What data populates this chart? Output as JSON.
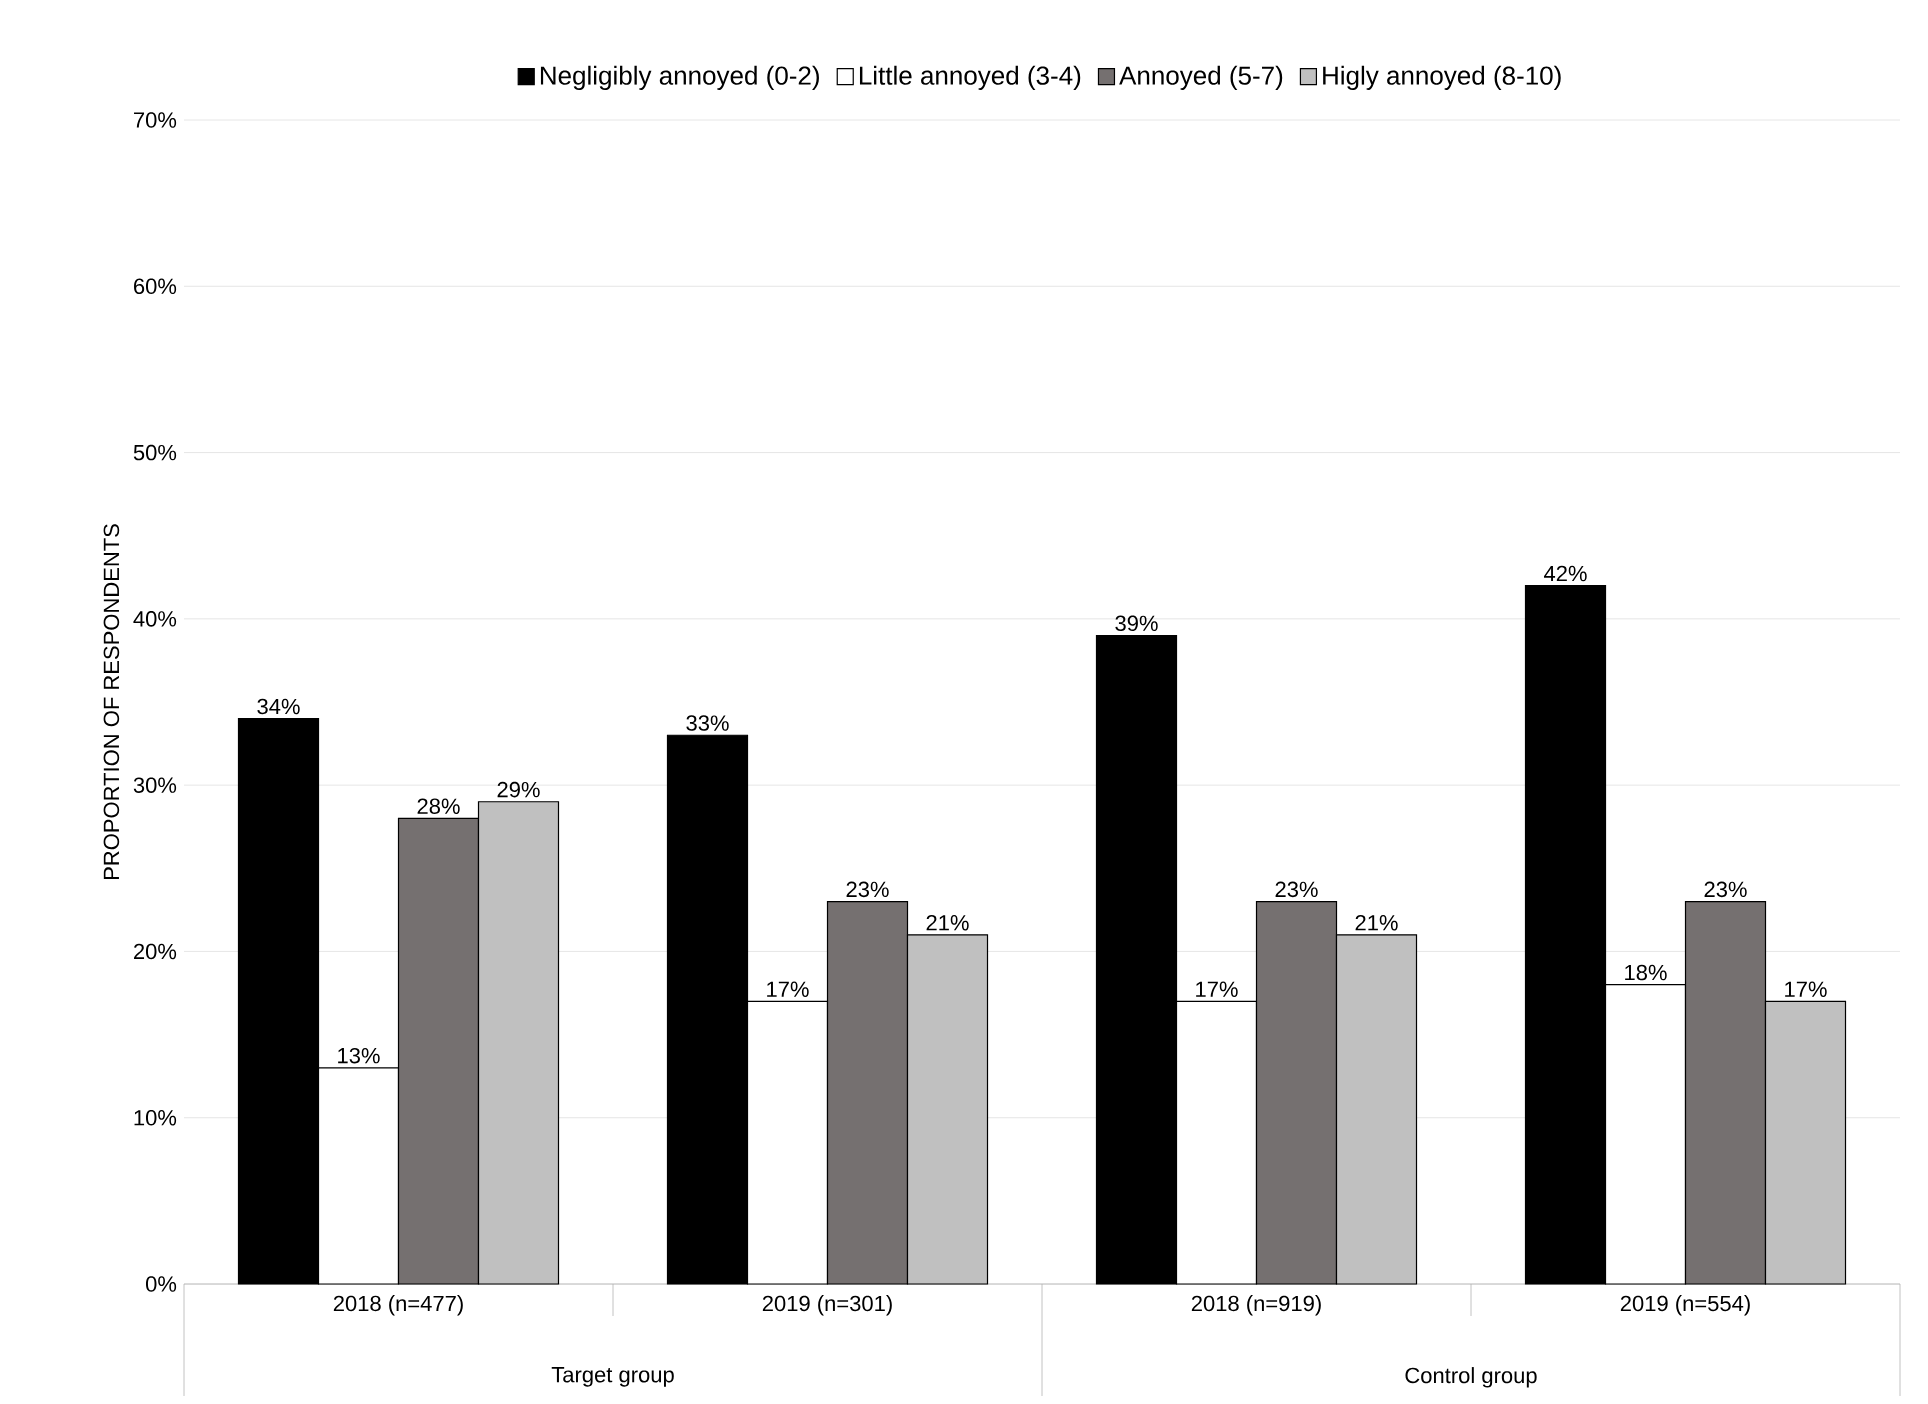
{
  "chart_data": {
    "type": "bar",
    "ylabel": "PROPORTION OF RESPONDENTS",
    "categories": [
      "2018 (n=477)",
      "2019 (n=301)",
      "2018 (n=919)",
      "2019 (n=554)"
    ],
    "series": [
      {
        "name": "Negligibly annoyed (0-2)",
        "color": "#000000",
        "values": [
          34,
          33,
          39,
          42
        ],
        "value_labels": [
          "34%",
          "33%",
          "39%",
          "42%"
        ]
      },
      {
        "name": "Little annoyed (3-4)",
        "color": "#ffffff",
        "values": [
          13,
          17,
          17,
          18
        ],
        "value_labels": [
          "13%",
          "17%",
          "17%",
          "18%"
        ]
      },
      {
        "name": "Annoyed (5-7)",
        "color": "#757070",
        "values": [
          28,
          23,
          23,
          23
        ],
        "value_labels": [
          "28%",
          "23%",
          "23%",
          "23%"
        ]
      },
      {
        "name": "Higly annoyed (8-10)",
        "color": "#c0c0c0",
        "values": [
          29,
          21,
          21,
          17
        ],
        "value_labels": [
          "29%",
          "21%",
          "21%",
          "17%"
        ]
      }
    ],
    "ylim": [
      0,
      70
    ],
    "yticks": [
      {
        "value": 0,
        "label": "0%"
      },
      {
        "value": 10,
        "label": "10%"
      },
      {
        "value": 20,
        "label": "20%"
      },
      {
        "value": 30,
        "label": "30%"
      },
      {
        "value": 40,
        "label": "40%"
      },
      {
        "value": 50,
        "label": "50%"
      },
      {
        "value": 60,
        "label": "60%"
      },
      {
        "value": 70,
        "label": "70%"
      }
    ],
    "grid": "y",
    "legend": "top",
    "annotations": [
      "Target group",
      "Control group"
    ]
  }
}
